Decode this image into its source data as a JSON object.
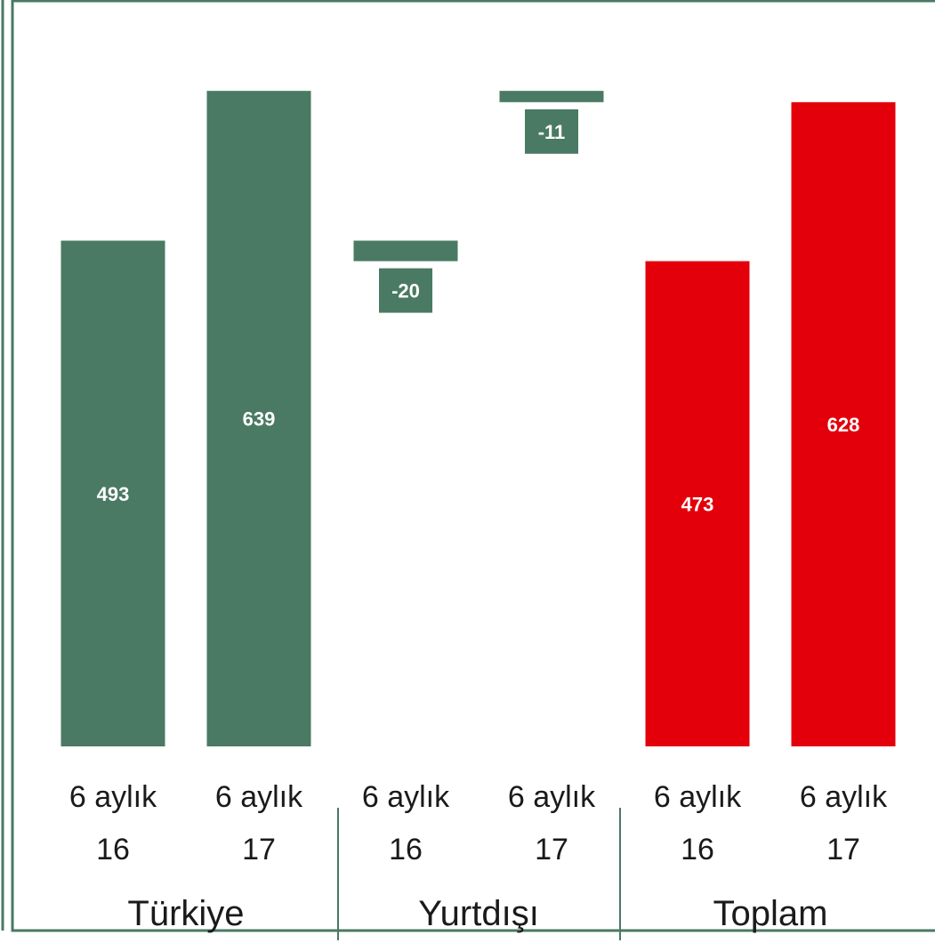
{
  "chart_data": {
    "type": "bar",
    "categories": [
      "6 aylık 16",
      "6 aylık 17",
      "6 aylık 16",
      "6 aylık 17",
      "6 aylık 16",
      "6 aylık 17"
    ],
    "category_lines": [
      [
        "6 aylık",
        "16"
      ],
      [
        "6 aylık",
        "17"
      ],
      [
        "6 aylık",
        "16"
      ],
      [
        "6 aylık",
        "17"
      ],
      [
        "6 aylık",
        "16"
      ],
      [
        "6 aylık",
        "17"
      ]
    ],
    "groups": [
      {
        "label": "Türkiye",
        "categories": [
          0,
          1
        ]
      },
      {
        "label": "Yurtdışı",
        "categories": [
          2,
          3
        ]
      },
      {
        "label": "Toplam",
        "categories": [
          4,
          5
        ]
      }
    ],
    "values": [
      493,
      639,
      -20,
      -11,
      473,
      628
    ],
    "value_labels": [
      "493",
      "639",
      "-20",
      "-11",
      "473",
      "628"
    ],
    "ylim": [
      0,
      660
    ],
    "grid": false,
    "legend": "none",
    "title": "",
    "xlabel": "",
    "ylabel": ""
  },
  "colors": {
    "green": "#4a7a63",
    "red": "#e3000b",
    "frame": "#4a7a63",
    "text": "#1a1a1a"
  }
}
